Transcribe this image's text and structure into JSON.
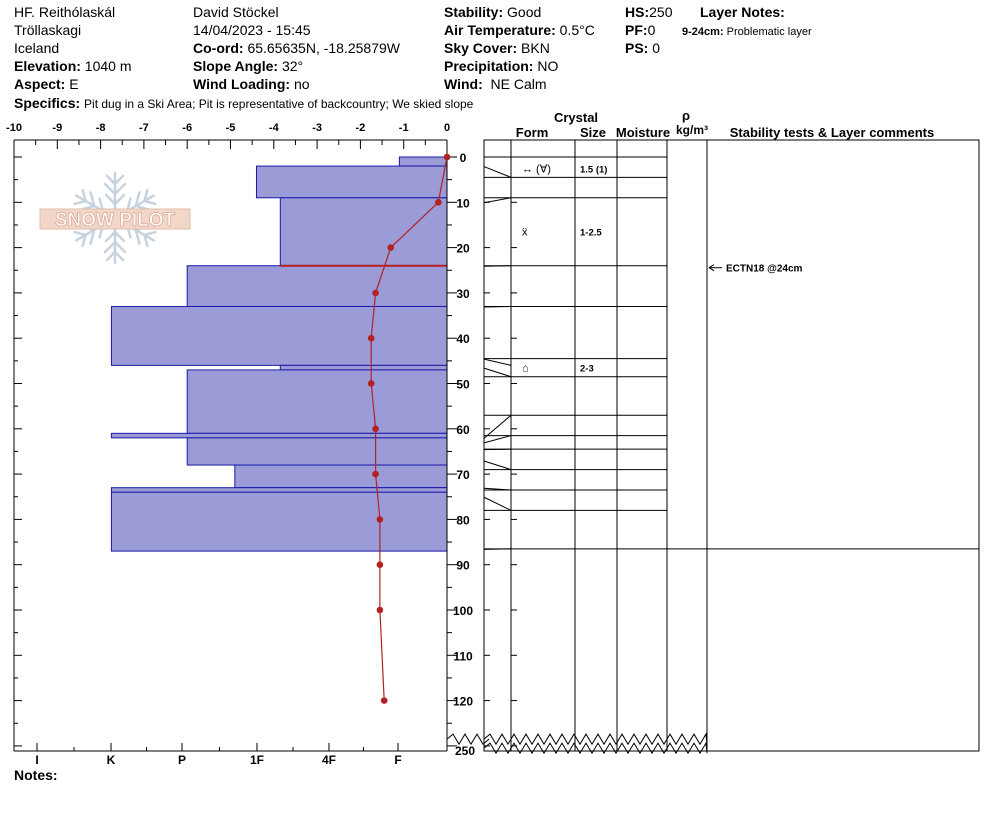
{
  "header": {
    "location": "HF. Reithólaskál",
    "area": "Tröllaskagi",
    "country": "Iceland",
    "elevation_label": "Elevation:",
    "elevation_value": "1040 m",
    "aspect_label": "Aspect:",
    "aspect_value": "E",
    "observer": "David Stöckel",
    "datetime": "14/04/2023 - 15:45",
    "coord_label": "Co-ord:",
    "coord_value": "65.65635N, -18.25879W",
    "slope_label": "Slope Angle:",
    "slope_value": "32°",
    "wind_loading_label": "Wind Loading:",
    "wind_loading_value": "no",
    "stability_label": "Stability:",
    "stability_value": "Good",
    "air_temp_label": "Air Temperature:",
    "air_temp_value": "0.5°C",
    "sky_label": "Sky Cover:",
    "sky_value": "BKN",
    "precip_label": "Precipitation:",
    "precip_value": "NO",
    "wind_label": "Wind:",
    "wind_value": "NE Calm",
    "hs_label": "HS:",
    "hs_value": "250",
    "pf_label": "PF:",
    "pf_value": "0",
    "ps_label": "PS:",
    "ps_value": "0",
    "layer_notes_label": "Layer Notes:",
    "layer_note_range": "9-24cm:",
    "layer_note_text": "Problematic layer",
    "specifics_label": "Specifics:",
    "specifics_value": "Pit dug in a Ski Area; Pit is representative of backcountry; We skied slope",
    "notes_label": "Notes:"
  },
  "logo_text": "SNOW PILOT",
  "columns": {
    "crystal": "Crystal",
    "form": "Form",
    "size": "Size",
    "moisture": "Moisture",
    "rho": "ρ",
    "density_unit": "kg/m³",
    "stability": "Stability tests & Layer comments"
  },
  "chart_data": {
    "type": "snow-profile",
    "colors": {
      "hardness_fill": "#9b9bd8",
      "hardness_edge": "#1a1aa8",
      "temperature": "#b22222",
      "critical_layer": "#b22222"
    },
    "temperature_axis": {
      "ticks": [
        "-10",
        "-9",
        "-8",
        "-7",
        "-6",
        "-5",
        "-4",
        "-3",
        "-2",
        "-1",
        "0"
      ],
      "range": [
        -10,
        0
      ],
      "unit": "°C"
    },
    "depth_axis": {
      "ticks": [
        "0",
        "10",
        "20",
        "30",
        "40",
        "50",
        "60",
        "70",
        "80",
        "90",
        "100",
        "110",
        "120"
      ],
      "range": [
        0,
        130
      ],
      "bottom_label": "250",
      "break_marker": true
    },
    "hardness_axis": {
      "labels": [
        "I",
        "K",
        "P",
        "1F",
        "4F",
        "F"
      ]
    },
    "hardness_layers": [
      {
        "top": 0,
        "bottom": 2,
        "temp_extent": -1.1
      },
      {
        "top": 2,
        "bottom": 9,
        "temp_extent": -4.4
      },
      {
        "top": 9,
        "bottom": 24,
        "temp_extent": -3.85
      },
      {
        "top": 24,
        "bottom": 33,
        "temp_extent": -6.0
      },
      {
        "top": 33,
        "bottom": 46,
        "temp_extent": -7.75
      },
      {
        "top": 46,
        "bottom": 47,
        "temp_extent": -3.85
      },
      {
        "top": 47,
        "bottom": 61,
        "temp_extent": -6.0
      },
      {
        "top": 61,
        "bottom": 62,
        "temp_extent": -7.75
      },
      {
        "top": 62,
        "bottom": 68,
        "temp_extent": -6.0
      },
      {
        "top": 68,
        "bottom": 73,
        "temp_extent": -4.9
      },
      {
        "top": 73,
        "bottom": 74,
        "temp_extent": -7.75
      },
      {
        "top": 74,
        "bottom": 87,
        "temp_extent": -7.75
      }
    ],
    "critical_layer_depth": 24,
    "temperature_profile": [
      {
        "depth": 0,
        "temp": 0.0
      },
      {
        "depth": 10,
        "temp": -0.2
      },
      {
        "depth": 20,
        "temp": -1.3
      },
      {
        "depth": 30,
        "temp": -1.65
      },
      {
        "depth": 40,
        "temp": -1.75
      },
      {
        "depth": 50,
        "temp": -1.75
      },
      {
        "depth": 60,
        "temp": -1.65
      },
      {
        "depth": 70,
        "temp": -1.65
      },
      {
        "depth": 80,
        "temp": -1.55
      },
      {
        "depth": 90,
        "temp": -1.55
      },
      {
        "depth": 100,
        "temp": -1.55
      },
      {
        "depth": 120,
        "temp": -1.45
      }
    ],
    "layer_boundaries": [
      0,
      4.5,
      9,
      24,
      33,
      44.5,
      48.5,
      57,
      61.5,
      64.5,
      69,
      73.5,
      78,
      86.5
    ],
    "crystal_rows": [
      {
        "depth": 2.5,
        "form": "↔ (∀)",
        "size": "1.5 (1)"
      },
      {
        "depth": 16.5,
        "form": "ẍ",
        "size": "1-2.5"
      },
      {
        "depth": 46.5,
        "form": "⌂",
        "size": "2-3"
      }
    ],
    "stability_tests": [
      {
        "depth": 24,
        "label": "ECTN18 @24cm"
      }
    ]
  }
}
